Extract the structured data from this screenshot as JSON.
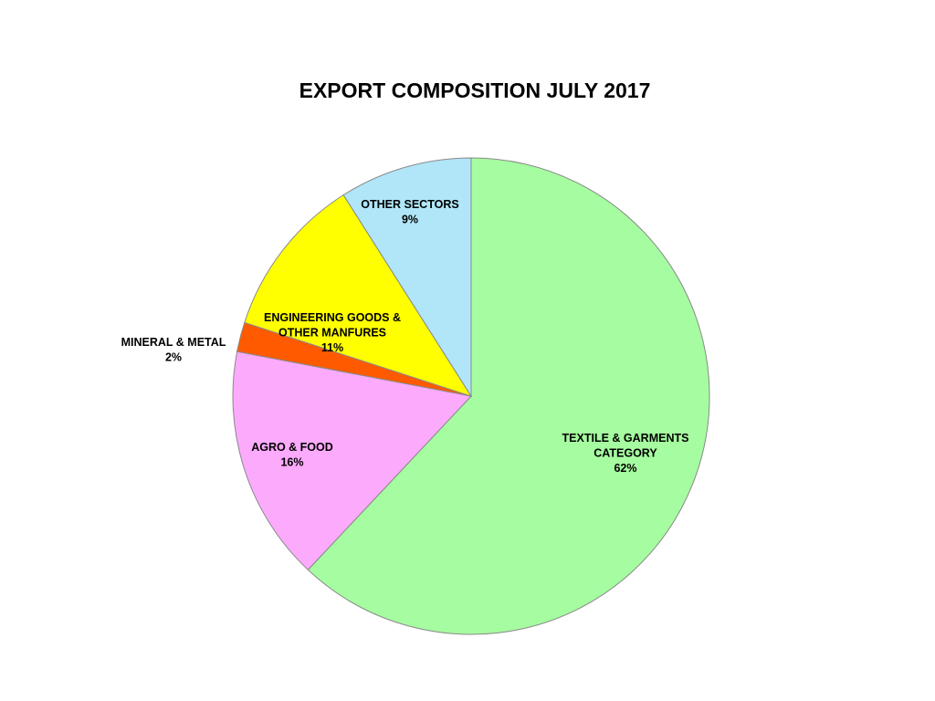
{
  "chart_data": {
    "type": "pie",
    "title": "EXPORT COMPOSITION JULY 2017",
    "slices": [
      {
        "label": "TEXTILE & GARMENTS CATEGORY",
        "value": 62,
        "value_label": "62%",
        "color": "#a6fca0"
      },
      {
        "label": "AGRO & FOOD",
        "value": 16,
        "value_label": "16%",
        "color": "#fcaafc"
      },
      {
        "label": "MINERAL & METAL",
        "value": 2,
        "value_label": "2%",
        "color": "#ff5a00"
      },
      {
        "label": "ENGINEERING GOODS & OTHER MANFURES",
        "value": 11,
        "value_label": "11%",
        "color": "#ffff00"
      },
      {
        "label": "OTHER SECTORS",
        "value": 9,
        "value_label": "9%",
        "color": "#b0e6f8"
      }
    ],
    "start_angle": "12 o'clock",
    "direction": "clockwise"
  }
}
